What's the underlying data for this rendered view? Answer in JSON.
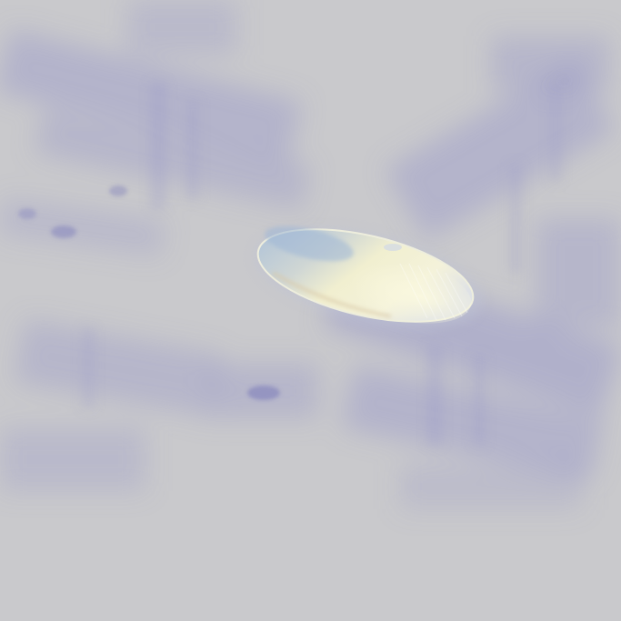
{
  "image": {
    "subject": "elongated-translucent-object",
    "colors": {
      "background": "#c9c9cc",
      "texture_tint": "#8c8cc8",
      "object_highlight": "#f3f1d2",
      "object_shadow_blue": "#9db6d6",
      "object_warm": "#e9dcc0"
    }
  }
}
